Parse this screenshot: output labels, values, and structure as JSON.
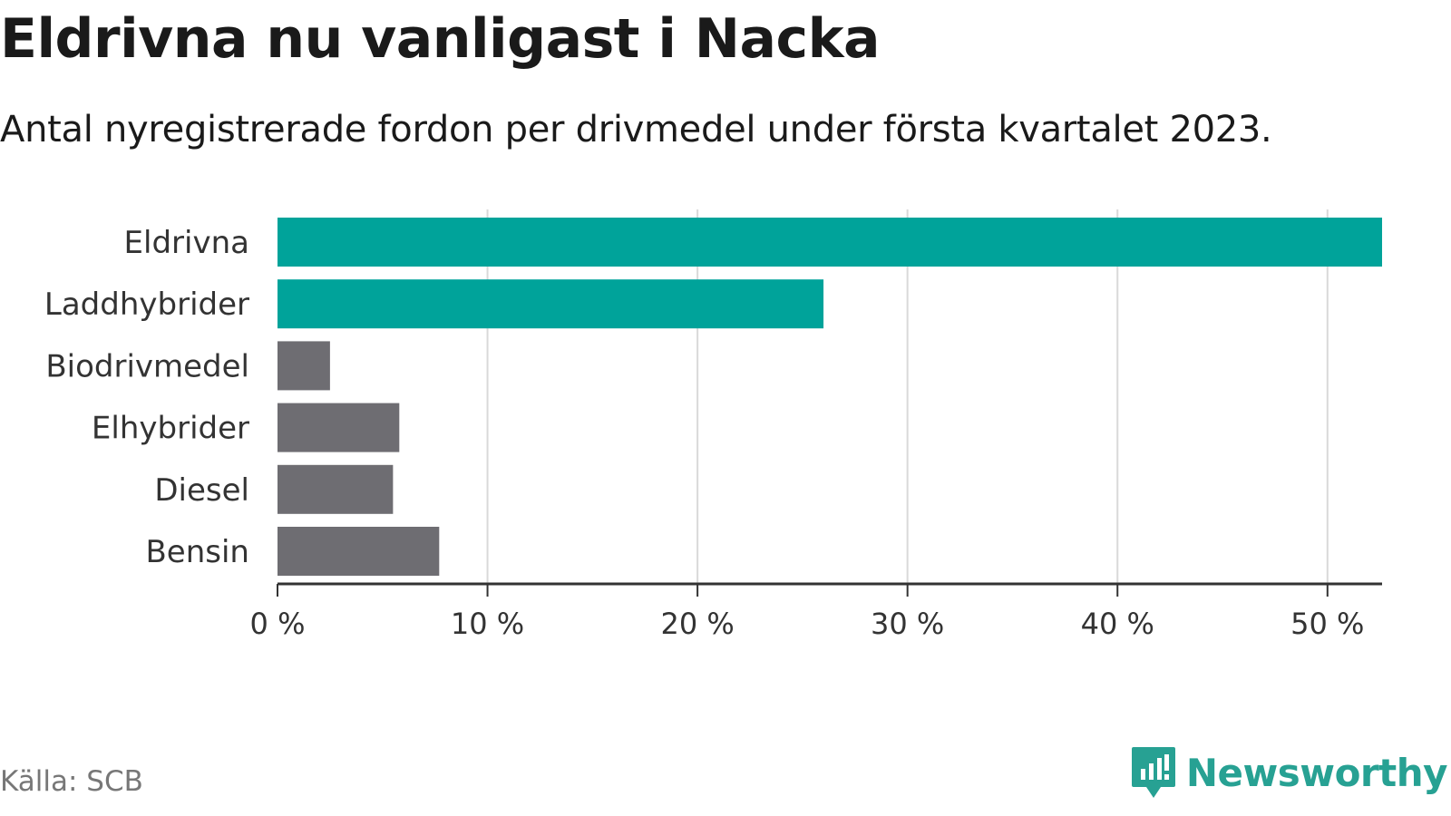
{
  "title": "Eldrivna nu vanligast i Nacka",
  "subtitle": "Antal nyregistrerade fordon per drivmedel under första kvartalet 2023.",
  "source": "Källa: SCB",
  "brand": {
    "name": "Newsworthy",
    "icon": "newsworthy-logo-icon"
  },
  "colors": {
    "highlight": "#00a39a",
    "other": "#6e6d72",
    "axis": "#333333",
    "grid": "#d9d9d9",
    "brand": "#27a193"
  },
  "chart_data": {
    "type": "bar",
    "orientation": "horizontal",
    "categories": [
      "Eldrivna",
      "Laddhybrider",
      "Biodrivmedel",
      "Elhybrider",
      "Diesel",
      "Bensin"
    ],
    "values": [
      52.6,
      26.0,
      2.5,
      5.8,
      5.5,
      7.7
    ],
    "highlighted": [
      true,
      true,
      false,
      false,
      false,
      false
    ],
    "unit": "%",
    "xlim": [
      0,
      52.6
    ],
    "xticks": [
      0,
      10,
      20,
      30,
      40,
      50
    ],
    "xtick_labels": [
      "0 %",
      "10 %",
      "20 %",
      "30 %",
      "40 %",
      "50 %"
    ],
    "grid": true,
    "xlabel": "",
    "ylabel": ""
  }
}
